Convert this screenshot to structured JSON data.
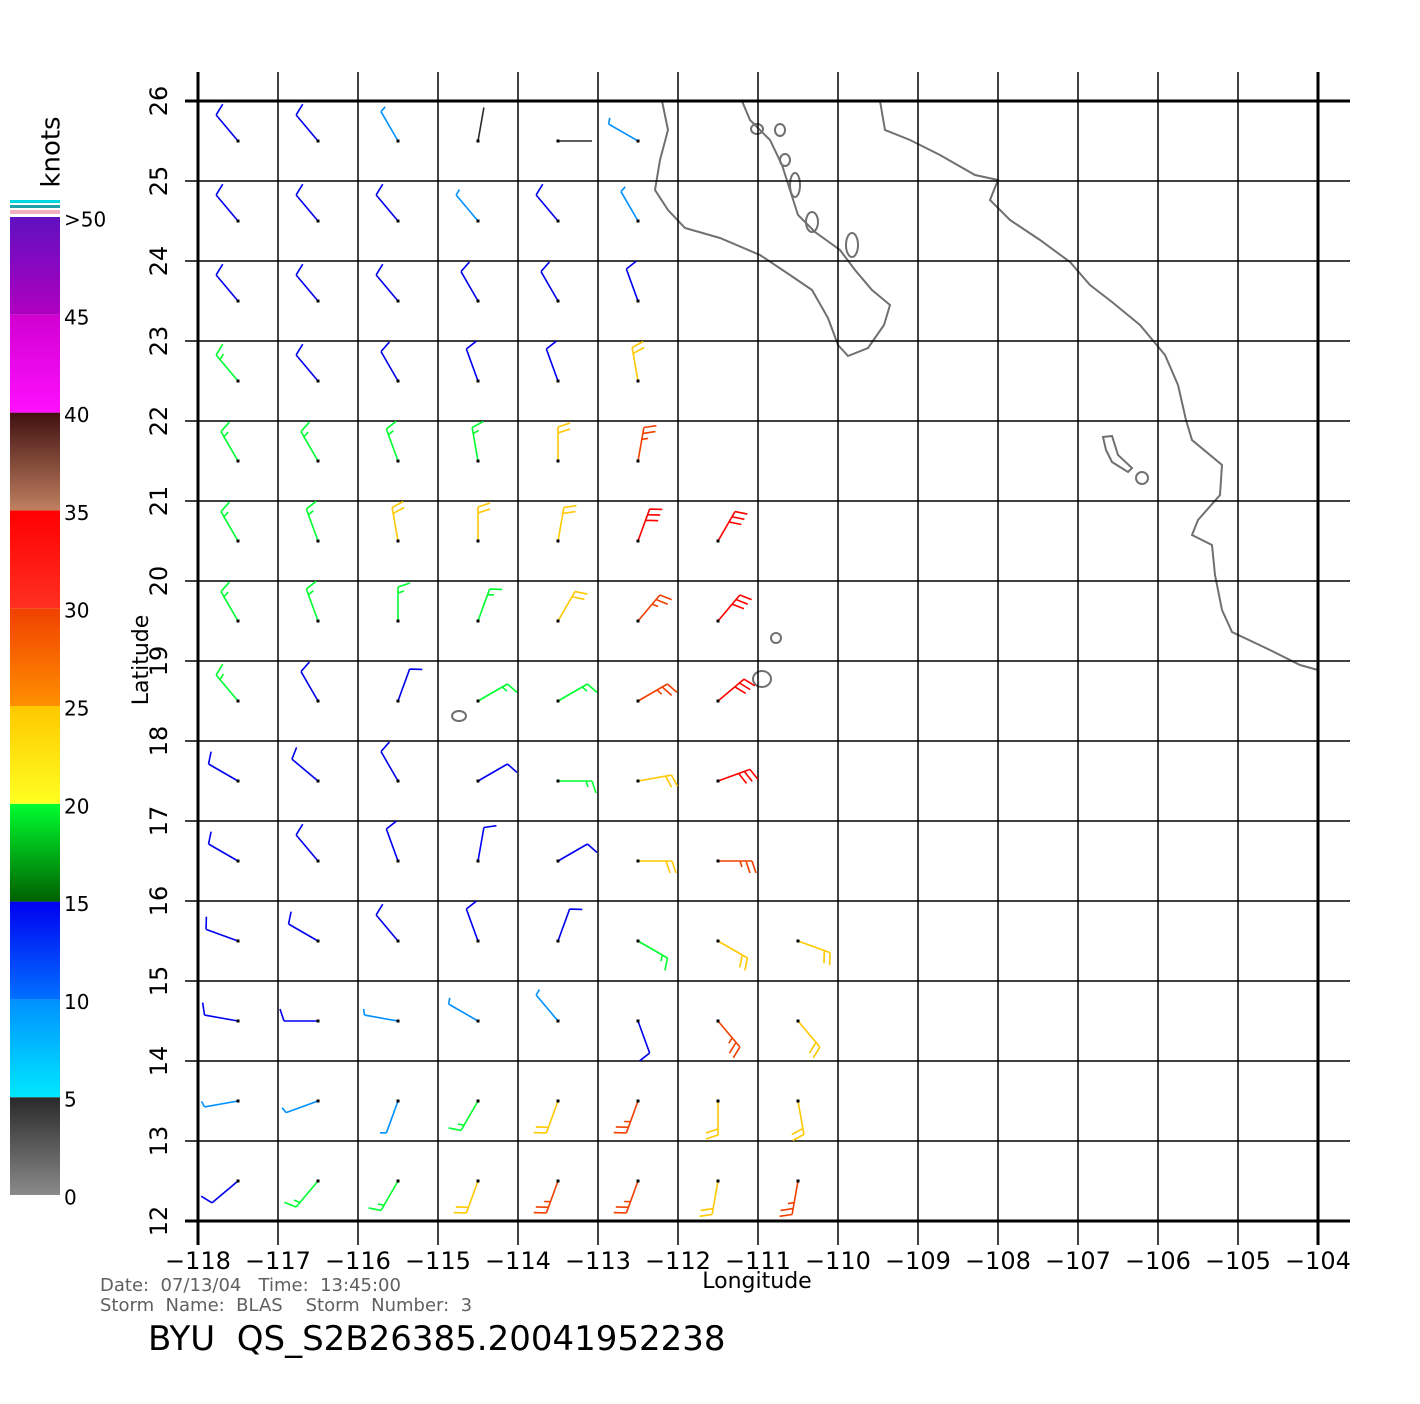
{
  "map": {
    "colorbar_title": "knots",
    "colorbar": {
      "ticks": [
        0,
        5,
        10,
        15,
        20,
        25,
        30,
        35,
        40,
        45,
        {
          "value": 50,
          "label": ">50"
        }
      ],
      "colors": [
        [
          "#8a8a8a",
          "#2a2a2a"
        ],
        [
          "#00e8ff",
          "#0090ff"
        ],
        [
          "#0070ff",
          "#0000f0"
        ],
        [
          "#006000",
          "#00ff30"
        ],
        [
          "#ffff20",
          "#ffc800"
        ],
        [
          "#ff9000",
          "#f04000"
        ],
        [
          "#ff3020",
          "#ff0000"
        ],
        [
          "#c08060",
          "#401010"
        ],
        [
          "#ff10ff",
          "#d000d0"
        ],
        [
          "#b000c0",
          "#6010c0"
        ]
      ]
    },
    "ylabel": "Latitude",
    "xlabel": "Longitude",
    "xlim": [
      -118,
      -104
    ],
    "ylim": [
      12,
      26
    ],
    "yticks": [
      12,
      13,
      14,
      15,
      16,
      17,
      18,
      19,
      20,
      21,
      22,
      23,
      24,
      25,
      26
    ],
    "xticks": [
      {
        "value": -118,
        "label": "−118"
      },
      {
        "value": -117,
        "label": "−117"
      },
      {
        "value": -116,
        "label": "−116"
      },
      {
        "value": -115,
        "label": "−115"
      },
      {
        "value": -114,
        "label": "−114"
      },
      {
        "value": -113,
        "label": "−113"
      },
      {
        "value": -112,
        "label": "−112"
      },
      {
        "value": -111,
        "label": "−111"
      },
      {
        "value": -110,
        "label": "−110"
      },
      {
        "value": -109,
        "label": "−109"
      },
      {
        "value": -108,
        "label": "−108"
      },
      {
        "value": -107,
        "label": "−107"
      },
      {
        "value": -106,
        "label": "−106"
      },
      {
        "value": -105,
        "label": "−105"
      },
      {
        "value": -104,
        "label": "−104"
      }
    ],
    "grid": true,
    "wind": {
      "lats": [
        25.5,
        24.5,
        23.5,
        22.5,
        21.5,
        20.5,
        19.5,
        18.5,
        17.5,
        16.5,
        15.5,
        14.5,
        13.5,
        12.5
      ],
      "lons": [
        -117.5,
        -116.5,
        -115.5,
        -114.5,
        -113.5,
        -112.5,
        -111.5,
        -110.5
      ],
      "speed": [
        [
          12,
          10,
          8,
          3,
          4,
          7,
          null,
          null
        ],
        [
          12,
          11,
          10,
          9,
          10,
          8,
          null,
          null
        ],
        [
          13,
          13,
          13,
          13,
          12,
          12,
          null,
          null
        ],
        [
          15,
          14,
          14,
          14,
          14,
          20,
          null,
          null
        ],
        [
          16,
          17,
          18,
          18,
          20,
          28,
          null,
          null
        ],
        [
          17,
          18,
          20,
          20,
          22,
          30,
          32,
          null
        ],
        [
          16,
          18,
          19,
          18,
          20,
          27,
          33,
          null
        ],
        [
          15,
          14,
          13,
          16,
          19,
          25,
          32,
          null
        ],
        [
          13,
          12,
          12,
          12,
          16,
          23,
          30,
          null
        ],
        [
          12,
          11,
          11,
          12,
          13,
          22,
          28,
          null
        ],
        [
          11,
          11,
          10,
          10,
          11,
          19,
          24,
          22
        ],
        [
          11,
          10,
          9,
          9,
          9,
          14,
          25,
          24
        ],
        [
          8,
          7,
          9,
          17,
          20,
          26,
          22,
          23
        ],
        [
          14,
          15,
          16,
          20,
          25,
          28,
          22,
          26
        ]
      ],
      "dir": [
        [
          320,
          320,
          330,
          10,
          90,
          300,
          null,
          null
        ],
        [
          320,
          320,
          320,
          320,
          320,
          330,
          null,
          null
        ],
        [
          320,
          320,
          320,
          330,
          330,
          340,
          null,
          null
        ],
        [
          320,
          320,
          330,
          340,
          340,
          350,
          null,
          null
        ],
        [
          330,
          330,
          340,
          350,
          0,
          10,
          null,
          null
        ],
        [
          330,
          340,
          350,
          0,
          10,
          20,
          30,
          null
        ],
        [
          330,
          340,
          0,
          20,
          30,
          40,
          40,
          null
        ],
        [
          320,
          330,
          20,
          60,
          60,
          60,
          50,
          null
        ],
        [
          300,
          310,
          330,
          60,
          90,
          80,
          70,
          null
        ],
        [
          300,
          320,
          340,
          10,
          60,
          90,
          90,
          null
        ],
        [
          290,
          300,
          320,
          340,
          20,
          120,
          120,
          110
        ],
        [
          280,
          270,
          280,
          300,
          320,
          160,
          140,
          140
        ],
        [
          260,
          250,
          200,
          210,
          200,
          200,
          180,
          170
        ],
        [
          230,
          220,
          210,
          200,
          200,
          200,
          190,
          190
        ]
      ]
    },
    "footer": {
      "line1": "Date:  07/13/04   Time:  13:45:00",
      "line2": "Storm  Name:  BLAS    Storm  Number:  3",
      "title": "BYU  QS_S2B26385.20041952238"
    }
  }
}
